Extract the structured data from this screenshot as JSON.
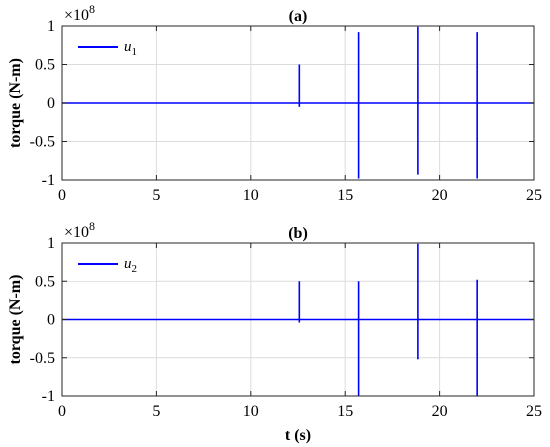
{
  "chart_data": [
    {
      "type": "line",
      "title": "(a)",
      "xlabel": "",
      "ylabel": "torque (N-m)",
      "exponent": {
        "base": "×10",
        "power": "8"
      },
      "xlim": [
        0,
        25
      ],
      "ylim": [
        -1,
        1
      ],
      "xticks": [
        0,
        5,
        10,
        15,
        20,
        25
      ],
      "yticks": [
        1,
        0.5,
        0,
        -0.5,
        -1
      ],
      "ytick_labels": [
        "1",
        "0.5",
        "0",
        "-0.5",
        "-1"
      ],
      "grid": true,
      "legend": {
        "placement": "top-left",
        "text": "u",
        "subscript": "1"
      },
      "color": "#0000FF",
      "series": [
        {
          "name": "u1",
          "spikes": [
            {
              "x": 12.57,
              "max": 0.5,
              "min": -0.05
            },
            {
              "x": 15.71,
              "max": 0.92,
              "min": -0.98
            },
            {
              "x": 18.85,
              "max": 0.99,
              "min": -0.93
            },
            {
              "x": 21.99,
              "max": 0.92,
              "min": -0.98
            }
          ]
        }
      ]
    },
    {
      "type": "line",
      "title": "(b)",
      "xlabel": "t (s)",
      "ylabel": "torque (N-m)",
      "exponent": {
        "base": "×10",
        "power": "8"
      },
      "xlim": [
        0,
        25
      ],
      "ylim": [
        -1,
        1
      ],
      "xticks": [
        0,
        5,
        10,
        15,
        20,
        25
      ],
      "yticks": [
        1,
        0.5,
        0,
        -0.5,
        -1
      ],
      "ytick_labels": [
        "1",
        "0.5",
        "0",
        "-0.5",
        "-1"
      ],
      "grid": true,
      "legend": {
        "placement": "top-left",
        "text": "u",
        "subscript": "2"
      },
      "color": "#0000FF",
      "series": [
        {
          "name": "u2",
          "spikes": [
            {
              "x": 12.57,
              "max": 0.5,
              "min": -0.04
            },
            {
              "x": 15.71,
              "max": 0.5,
              "min": -1.0
            },
            {
              "x": 18.85,
              "max": 0.99,
              "min": -0.52
            },
            {
              "x": 21.99,
              "max": 0.52,
              "min": -1.0
            }
          ]
        }
      ]
    }
  ]
}
